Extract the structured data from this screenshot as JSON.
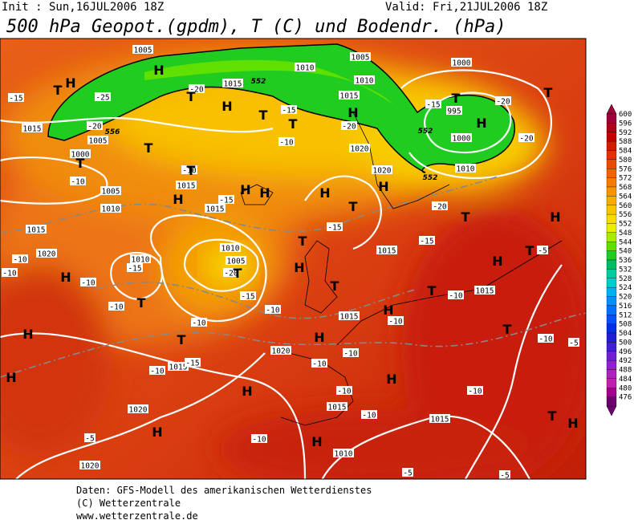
{
  "header": {
    "init": "Init : Sun,16JUL2006 18Z",
    "valid": "Valid: Fri,21JUL2006 18Z",
    "title": "500 hPa Geopot.(gpdm), T (C) und Bodendr. (hPa)"
  },
  "map": {
    "labels": [
      "1005",
      "1010",
      "1005",
      "1000",
      "1015",
      "1010",
      "1015",
      "995",
      "1000",
      "1015",
      "1005",
      "1000",
      "1020",
      "1020",
      "1010",
      "1005",
      "1010",
      "1015",
      "1015",
      "1015",
      "1020",
      "1010",
      "1010",
      "1005",
      "1015",
      "1015",
      "1015",
      "1020",
      "1015",
      "1020",
      "1015",
      "1015",
      "1010",
      "1020",
      "-15",
      "-25",
      "-20",
      "-20",
      "-15",
      "-10",
      "-20",
      "-15",
      "-20",
      "-20",
      "-10",
      "-10",
      "-15",
      "-15",
      "-20",
      "-15",
      "-10",
      "-10",
      "-15",
      "-20",
      "-10",
      "-15",
      "-10",
      "-10",
      "-10",
      "-10",
      "-10",
      "-10",
      "-10",
      "-10",
      "-15",
      "-10",
      "-10",
      "-10",
      "-10",
      "-10",
      "-5",
      "-5",
      "-5",
      "-5",
      "-5",
      "H",
      "T",
      "H",
      "T",
      "H",
      "T",
      "T",
      "H",
      "T",
      "H",
      "T",
      "T",
      "T",
      "T",
      "H",
      "H",
      "H",
      "H",
      "T",
      "H",
      "T",
      "H",
      "T",
      "H",
      "T",
      "H",
      "T",
      "H",
      "T",
      "T",
      "T",
      "H",
      "T",
      "H",
      "T",
      "H",
      "H",
      "H",
      "H",
      "H",
      "H",
      "T",
      "H",
      "552",
      "552",
      "552",
      "556"
    ]
  },
  "colorbar": {
    "levels": [
      600,
      596,
      592,
      588,
      584,
      580,
      576,
      572,
      568,
      564,
      560,
      556,
      552,
      548,
      544,
      540,
      536,
      532,
      528,
      524,
      520,
      516,
      512,
      508,
      504,
      500,
      496,
      492,
      488,
      484,
      480,
      476
    ],
    "colors": [
      "#a0003a",
      "#b00018",
      "#c40000",
      "#d41c00",
      "#e03400",
      "#e84c00",
      "#f06400",
      "#f47c00",
      "#f89400",
      "#f8ac00",
      "#f8c400",
      "#f8dc00",
      "#e8f000",
      "#a8ec00",
      "#60e000",
      "#20cc20",
      "#00bc60",
      "#00cca0",
      "#00cccc",
      "#00b0f0",
      "#0090ff",
      "#0070ff",
      "#0050ff",
      "#0030e0",
      "#2020d0",
      "#4020d0",
      "#7020d0",
      "#9020d0",
      "#b020c0",
      "#c020b0",
      "#a00090",
      "#700070"
    ]
  },
  "footer": {
    "lines": [
      "Daten: GFS-Modell des amerikanischen Wetterdienstes",
      "(C) Wetterzentrale",
      "www.wetterzentrale.de"
    ]
  }
}
